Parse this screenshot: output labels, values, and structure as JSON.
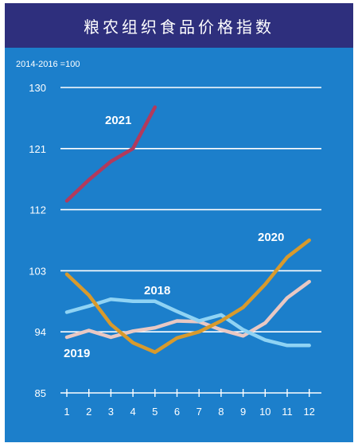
{
  "colors": {
    "title_bar": "#2e2f7d",
    "plot_bg": "#1c7fcb",
    "gridline": "#ffffff",
    "axis": "#ffffff",
    "text": "#ffffff"
  },
  "chart_data": {
    "type": "line",
    "title": "粮农组织食品价格指数",
    "base_note": "2014-2016 =100",
    "xlabel": "",
    "ylabel": "",
    "x": [
      1,
      2,
      3,
      4,
      5,
      6,
      7,
      8,
      9,
      10,
      11,
      12
    ],
    "x_ticks": [
      "1",
      "2",
      "3",
      "4",
      "5",
      "6",
      "7",
      "8",
      "9",
      "10",
      "11",
      "12"
    ],
    "ylim": [
      85,
      130
    ],
    "y_ticks": [
      85,
      94,
      103,
      112,
      121,
      130
    ],
    "grid": "horizontal",
    "legend": "inline labels",
    "series": [
      {
        "name": "2021",
        "color": "#b23a5c",
        "values": [
          113.3,
          116.4,
          119.1,
          121.0,
          127.1,
          null,
          null,
          null,
          null,
          null,
          null,
          null
        ]
      },
      {
        "name": "2020",
        "color": "#d89a2c",
        "values": [
          102.5,
          99.4,
          95.1,
          92.4,
          91.0,
          93.1,
          94.0,
          95.6,
          97.6,
          101.0,
          105.0,
          107.5
        ]
      },
      {
        "name": "2018",
        "color": "#8fd3f4",
        "values": [
          96.9,
          97.8,
          98.8,
          98.5,
          98.5,
          97.0,
          95.6,
          96.5,
          94.3,
          92.8,
          92.0,
          92.0
        ]
      },
      {
        "name": "2019",
        "color": "#e9c8c3",
        "values": [
          93.2,
          94.2,
          93.2,
          94.1,
          94.6,
          95.6,
          95.5,
          94.3,
          93.4,
          95.3,
          99.0,
          101.4
        ]
      }
    ]
  }
}
